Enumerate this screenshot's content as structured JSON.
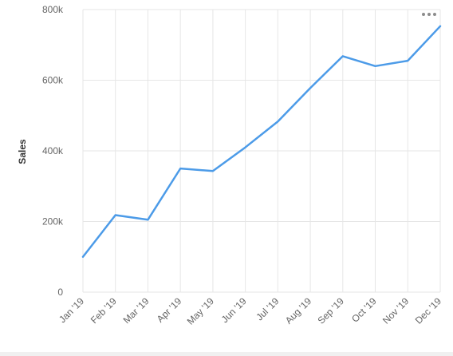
{
  "colors": {
    "line": "#4c9be8",
    "grid": "#e6e6e6",
    "axis_text": "#666666",
    "title_text": "#333333",
    "menu_dots": "#8c8c8c"
  },
  "chart_menu": {
    "icon": "ellipsis-horizontal-icon"
  },
  "chart_data": {
    "type": "line",
    "title": "",
    "xlabel": "",
    "ylabel": "Sales",
    "categories": [
      "Jan '19",
      "Feb '19",
      "Mar '19",
      "Apr '19",
      "May '19",
      "Jun '19",
      "Jul '19",
      "Aug '19",
      "Sep '19",
      "Oct '19",
      "Nov '19",
      "Dec '19"
    ],
    "x_tick_labels": [
      "Jan '19",
      "Feb '19",
      "Mar '19",
      "Apr '19",
      "May '19",
      "Jun '19",
      "Jul '19",
      "Aug '19",
      "Sep '19",
      "Oct '19",
      "Nov '19",
      "Dec '19"
    ],
    "y_tick_labels": [
      "0",
      "200k",
      "400k",
      "600k",
      "800k"
    ],
    "y_ticks": [
      0,
      200000,
      400000,
      600000,
      800000
    ],
    "ylim": [
      0,
      800000
    ],
    "grid": true,
    "legend": "none",
    "series": [
      {
        "values": [
          100000,
          218000,
          205000,
          350000,
          343000,
          410000,
          483000,
          578000,
          668000,
          640000,
          655000,
          753000
        ]
      }
    ]
  }
}
